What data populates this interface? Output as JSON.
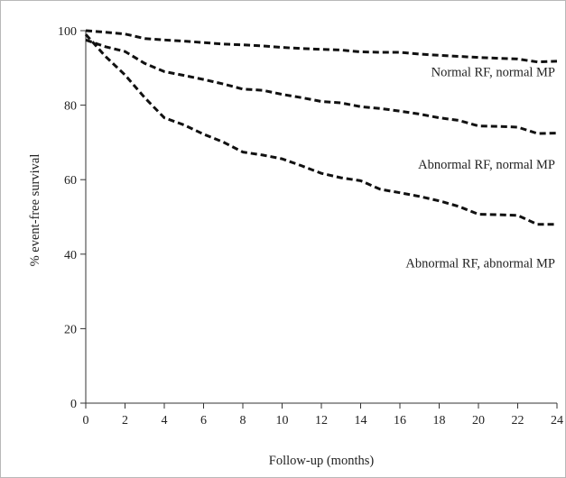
{
  "chart_data": {
    "type": "line",
    "title": "",
    "xlabel": "Follow-up (months)",
    "ylabel": "% event-free survival",
    "xlim": [
      0,
      24
    ],
    "ylim": [
      0,
      100
    ],
    "xticks": [
      0,
      2,
      4,
      6,
      8,
      10,
      12,
      14,
      16,
      18,
      20,
      22,
      24
    ],
    "yticks": [
      0,
      20,
      40,
      60,
      80,
      100
    ],
    "grid": false,
    "line_style": "dashed",
    "line_color": "#111111",
    "series": [
      {
        "name": "Normal RF, normal MP",
        "x": [
          0,
          1,
          2,
          3,
          4,
          5,
          6,
          7,
          8,
          9,
          10,
          11,
          12,
          13,
          14,
          15,
          16,
          17,
          18,
          19,
          20,
          21,
          22,
          23,
          24
        ],
        "y": [
          100,
          99.6,
          99.1,
          97.9,
          97.5,
          97.2,
          96.8,
          96.4,
          96.2,
          95.9,
          95.5,
          95.2,
          95.0,
          94.8,
          94.3,
          94.2,
          94.2,
          93.7,
          93.4,
          93.1,
          92.8,
          92.6,
          92.4,
          91.6,
          91.8
        ]
      },
      {
        "name": "Abnormal RF, normal MP",
        "x": [
          0,
          1,
          2,
          3,
          4,
          5,
          6,
          7,
          8,
          9,
          10,
          11,
          12,
          13,
          14,
          15,
          16,
          17,
          18,
          19,
          20,
          21,
          22,
          23,
          24
        ],
        "y": [
          97.5,
          95.7,
          94.4,
          91.2,
          89.0,
          88.0,
          86.9,
          85.7,
          84.3,
          84.0,
          82.9,
          82.0,
          81.0,
          80.6,
          79.6,
          79.1,
          78.4,
          77.6,
          76.6,
          75.9,
          74.4,
          74.3,
          74.1,
          72.4,
          72.5
        ]
      },
      {
        "name": "Abnormal RF, abnormal MP",
        "x": [
          0,
          1,
          2,
          3,
          4,
          5,
          6,
          7,
          8,
          9,
          10,
          11,
          12,
          13,
          14,
          15,
          16,
          17,
          18,
          19,
          20,
          21,
          22,
          23,
          24
        ],
        "y": [
          99.0,
          93.1,
          88.1,
          82.0,
          76.6,
          74.7,
          72.2,
          70.1,
          67.4,
          66.6,
          65.6,
          63.7,
          61.7,
          60.5,
          59.7,
          57.4,
          56.5,
          55.5,
          54.3,
          52.8,
          50.7,
          50.6,
          50.4,
          48.0,
          48.0
        ]
      }
    ],
    "annotations": [
      {
        "text": "Normal RF, normal MP",
        "series": 0
      },
      {
        "text": "Abnormal RF, normal MP",
        "series": 1
      },
      {
        "text": "Abnormal RF, abnormal MP",
        "series": 2
      }
    ]
  }
}
